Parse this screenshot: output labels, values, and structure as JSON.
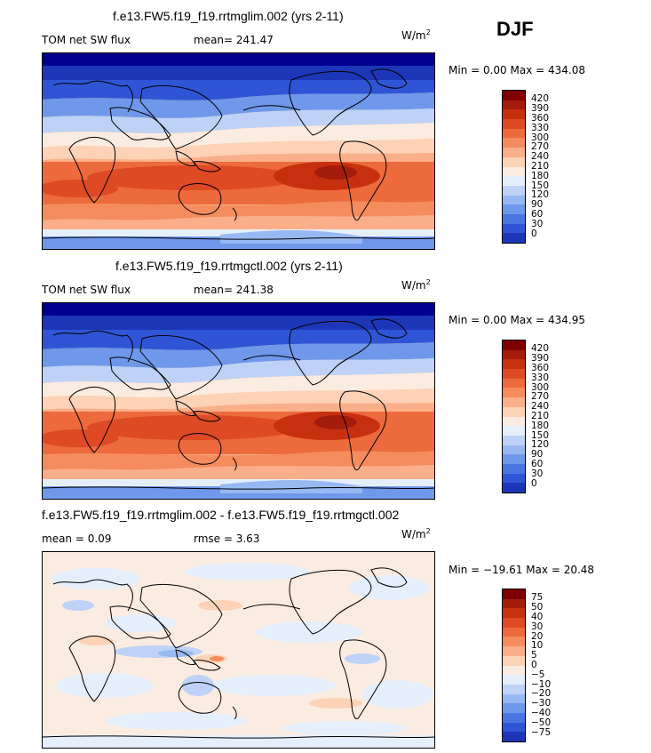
{
  "season_label": "DJF",
  "units": {
    "base": "W/m",
    "exp": "2"
  },
  "coast_color": "#000000",
  "panels": [
    {
      "id": "top",
      "title": "f.e13.FW5.f19_f19.rrtmglim.002 (yrs 2-11)",
      "left_label": "TOM net SW flux",
      "stat1": "mean= 241.47",
      "stat2": "",
      "minmax": "Min =    0.00 Max = 434.08",
      "map_kind": "field",
      "legend": {
        "colors": [
          "#7f0000",
          "#a51c0b",
          "#c7300f",
          "#dd4a24",
          "#ec6a3c",
          "#f58c5e",
          "#fbae8a",
          "#fdd2b6",
          "#fbece1",
          "#e5eefb",
          "#bdd2f6",
          "#97b8f2",
          "#6f98ea",
          "#4a75e1",
          "#2f55d6",
          "#1d36b8",
          "#000090"
        ],
        "ticks": [
          "420",
          "390",
          "360",
          "330",
          "300",
          "270",
          "240",
          "210",
          "180",
          "150",
          "120",
          "90",
          "60",
          "30",
          "0"
        ]
      }
    },
    {
      "id": "middle",
      "title": "f.e13.FW5.f19_f19.rrtmgctl.002 (yrs 2-11)",
      "left_label": "TOM net SW flux",
      "stat1": "mean= 241.38",
      "stat2": "",
      "minmax": "Min =    0.00 Max = 434.95",
      "map_kind": "field",
      "legend": {
        "colors": [
          "#7f0000",
          "#a51c0b",
          "#c7300f",
          "#dd4a24",
          "#ec6a3c",
          "#f58c5e",
          "#fbae8a",
          "#fdd2b6",
          "#fbece1",
          "#e5eefb",
          "#bdd2f6",
          "#97b8f2",
          "#6f98ea",
          "#4a75e1",
          "#2f55d6",
          "#1d36b8",
          "#000090"
        ],
        "ticks": [
          "420",
          "390",
          "360",
          "330",
          "300",
          "270",
          "240",
          "210",
          "180",
          "150",
          "120",
          "90",
          "60",
          "30",
          "0"
        ]
      }
    },
    {
      "id": "bottom",
      "title": "f.e13.FW5.f19_f19.rrtmglim.002 - f.e13.FW5.f19_f19.rrtmgctl.002",
      "left_label": "mean =    0.09",
      "stat1": "rmse =    3.63",
      "stat2": "",
      "minmax": "Min = −19.61 Max =  20.48",
      "map_kind": "diff",
      "legend": {
        "colors": [
          "#7f0000",
          "#a51c0b",
          "#c7300f",
          "#dd4a24",
          "#ec6a3c",
          "#f58c5e",
          "#fbae8a",
          "#fdd2b6",
          "#fbece1",
          "#e5eefb",
          "#bdd2f6",
          "#97b8f2",
          "#6f98ea",
          "#4a75e1",
          "#2f55d6",
          "#1d36b8",
          "#000090"
        ],
        "ticks": [
          "75",
          "50",
          "40",
          "30",
          "20",
          "10",
          "5",
          "0",
          "−5",
          "−10",
          "−20",
          "−30",
          "−40",
          "−50",
          "−75"
        ]
      }
    }
  ]
}
